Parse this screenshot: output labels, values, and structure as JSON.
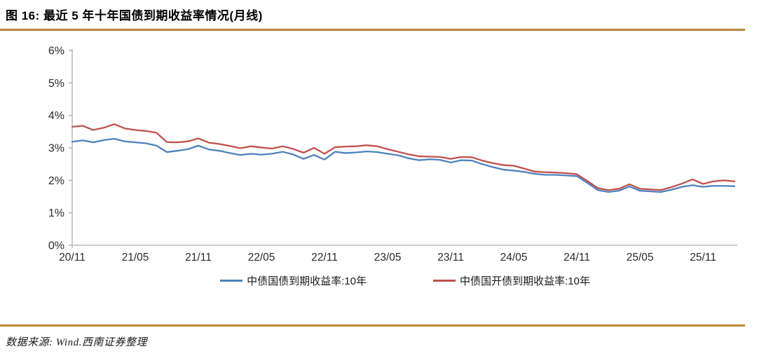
{
  "figure": {
    "title": "图 16:  最近 5 年十年国债到期收益率情况(月线)",
    "source": "数据来源: Wind.西南证券整理"
  },
  "colors": {
    "accent_rule": "#B8863B",
    "axis_line": "#ACACAC",
    "tick_text": "#2b2b2b",
    "series_treasury": "#4F81BD",
    "series_cdb": "#C0504D"
  },
  "chart_data": {
    "type": "line",
    "title": "",
    "xlabel": "",
    "ylabel": "",
    "ylim": [
      0,
      6
    ],
    "grid": false,
    "legend_position": "bottom",
    "y_tick_labels": [
      "0%",
      "1%",
      "2%",
      "3%",
      "4%",
      "5%",
      "6%"
    ],
    "x_tick_labels": [
      "20/11",
      "21/05",
      "21/11",
      "22/05",
      "22/11",
      "23/05",
      "23/11",
      "24/05",
      "24/11",
      "25/05",
      "25/11"
    ],
    "x_months_per_tick": 6,
    "x_start": "2020/11",
    "series": [
      {
        "name": "中债国债到期收益率:10年",
        "color": "#4F81BD",
        "values": [
          3.19,
          3.23,
          3.17,
          3.24,
          3.28,
          3.2,
          3.17,
          3.14,
          3.07,
          2.87,
          2.91,
          2.96,
          3.07,
          2.95,
          2.91,
          2.84,
          2.78,
          2.82,
          2.79,
          2.82,
          2.88,
          2.8,
          2.66,
          2.78,
          2.64,
          2.88,
          2.84,
          2.86,
          2.89,
          2.87,
          2.82,
          2.77,
          2.68,
          2.62,
          2.65,
          2.63,
          2.55,
          2.62,
          2.61,
          2.5,
          2.41,
          2.33,
          2.3,
          2.26,
          2.2,
          2.17,
          2.17,
          2.15,
          2.13,
          1.92,
          1.7,
          1.64,
          1.68,
          1.81,
          1.68,
          1.66,
          1.64,
          1.71,
          1.8,
          1.85,
          1.8,
          1.83,
          1.83,
          1.82
        ]
      },
      {
        "name": "中债国开债到期收益率:10年",
        "color": "#C0504D",
        "values": [
          3.65,
          3.68,
          3.55,
          3.62,
          3.73,
          3.6,
          3.55,
          3.52,
          3.47,
          3.18,
          3.17,
          3.2,
          3.29,
          3.16,
          3.12,
          3.06,
          2.99,
          3.05,
          3.01,
          2.98,
          3.05,
          2.97,
          2.85,
          3.0,
          2.82,
          3.02,
          3.04,
          3.05,
          3.08,
          3.05,
          2.96,
          2.88,
          2.8,
          2.74,
          2.73,
          2.72,
          2.66,
          2.72,
          2.71,
          2.61,
          2.53,
          2.47,
          2.45,
          2.36,
          2.27,
          2.25,
          2.24,
          2.22,
          2.19,
          1.98,
          1.76,
          1.7,
          1.74,
          1.88,
          1.74,
          1.72,
          1.7,
          1.79,
          1.9,
          2.03,
          1.89,
          1.97,
          2.0,
          1.97
        ]
      }
    ]
  }
}
